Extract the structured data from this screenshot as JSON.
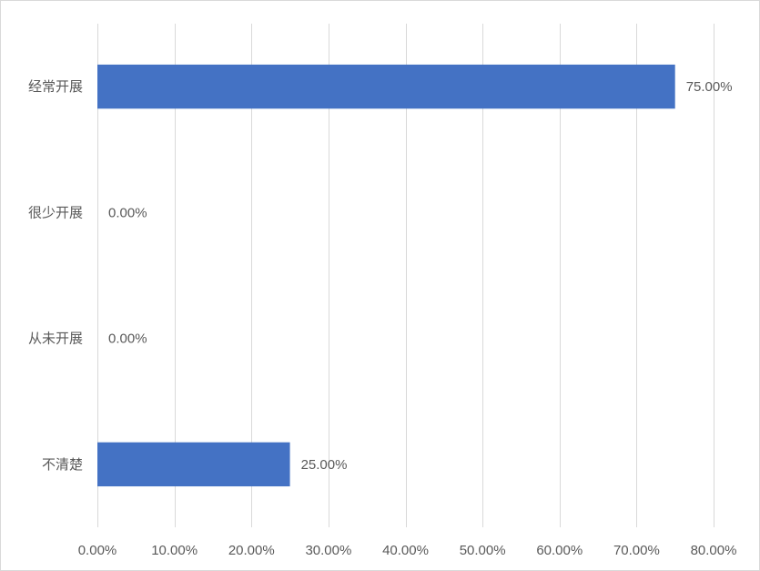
{
  "chart_data": {
    "type": "bar",
    "orientation": "horizontal",
    "title": "",
    "xlabel": "",
    "ylabel": "",
    "categories": [
      "经常开展",
      "很少开展",
      "从未开展",
      "不清楚"
    ],
    "values": [
      75.0,
      0.0,
      0.0,
      25.0
    ],
    "data_labels": [
      "75.00%",
      "0.00%",
      "0.00%",
      "25.00%"
    ],
    "xlim": [
      0,
      80
    ],
    "x_ticks": [
      0,
      10,
      20,
      30,
      40,
      50,
      60,
      70,
      80
    ],
    "x_tick_labels": [
      "0.00%",
      "10.00%",
      "20.00%",
      "30.00%",
      "40.00%",
      "50.00%",
      "60.00%",
      "70.00%",
      "80.00%"
    ],
    "grid": "vertical",
    "legend": "none",
    "bar_color": "#4472C4",
    "grid_color": "#d9d9d9",
    "text_color": "#595959"
  }
}
